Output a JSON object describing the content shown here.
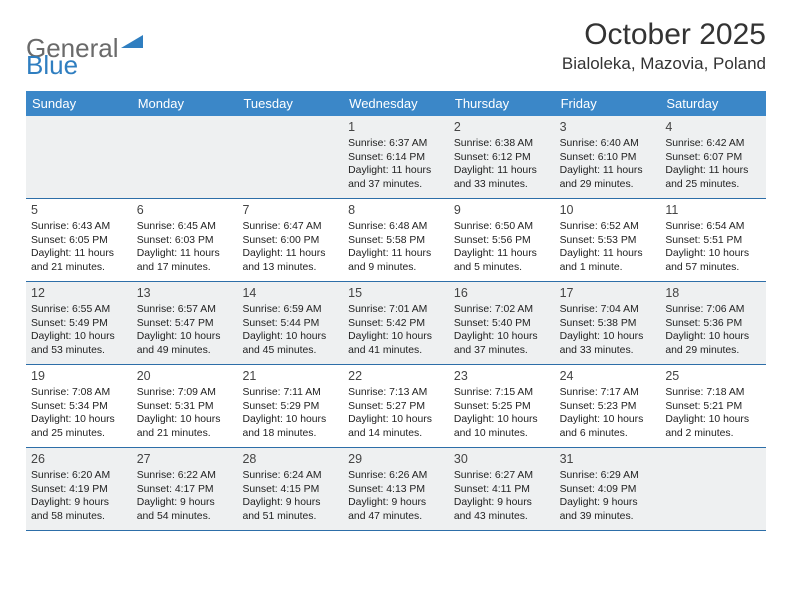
{
  "logo": {
    "text1": "General",
    "text2": "Blue"
  },
  "title": "October 2025",
  "location": "Bialoleka, Mazovia, Poland",
  "colors": {
    "header_bg": "#3b87c8",
    "header_text": "#ffffff",
    "rule": "#2d6ea8",
    "alt_row_bg": "#eef0f1",
    "logo_gray": "#6a6a6a",
    "logo_blue": "#2f7ec0"
  },
  "day_names": [
    "Sunday",
    "Monday",
    "Tuesday",
    "Wednesday",
    "Thursday",
    "Friday",
    "Saturday"
  ],
  "weeks": [
    [
      {
        "n": "",
        "sr": "",
        "ss": "",
        "dl": ""
      },
      {
        "n": "",
        "sr": "",
        "ss": "",
        "dl": ""
      },
      {
        "n": "",
        "sr": "",
        "ss": "",
        "dl": ""
      },
      {
        "n": "1",
        "sr": "Sunrise: 6:37 AM",
        "ss": "Sunset: 6:14 PM",
        "dl": "Daylight: 11 hours and 37 minutes."
      },
      {
        "n": "2",
        "sr": "Sunrise: 6:38 AM",
        "ss": "Sunset: 6:12 PM",
        "dl": "Daylight: 11 hours and 33 minutes."
      },
      {
        "n": "3",
        "sr": "Sunrise: 6:40 AM",
        "ss": "Sunset: 6:10 PM",
        "dl": "Daylight: 11 hours and 29 minutes."
      },
      {
        "n": "4",
        "sr": "Sunrise: 6:42 AM",
        "ss": "Sunset: 6:07 PM",
        "dl": "Daylight: 11 hours and 25 minutes."
      }
    ],
    [
      {
        "n": "5",
        "sr": "Sunrise: 6:43 AM",
        "ss": "Sunset: 6:05 PM",
        "dl": "Daylight: 11 hours and 21 minutes."
      },
      {
        "n": "6",
        "sr": "Sunrise: 6:45 AM",
        "ss": "Sunset: 6:03 PM",
        "dl": "Daylight: 11 hours and 17 minutes."
      },
      {
        "n": "7",
        "sr": "Sunrise: 6:47 AM",
        "ss": "Sunset: 6:00 PM",
        "dl": "Daylight: 11 hours and 13 minutes."
      },
      {
        "n": "8",
        "sr": "Sunrise: 6:48 AM",
        "ss": "Sunset: 5:58 PM",
        "dl": "Daylight: 11 hours and 9 minutes."
      },
      {
        "n": "9",
        "sr": "Sunrise: 6:50 AM",
        "ss": "Sunset: 5:56 PM",
        "dl": "Daylight: 11 hours and 5 minutes."
      },
      {
        "n": "10",
        "sr": "Sunrise: 6:52 AM",
        "ss": "Sunset: 5:53 PM",
        "dl": "Daylight: 11 hours and 1 minute."
      },
      {
        "n": "11",
        "sr": "Sunrise: 6:54 AM",
        "ss": "Sunset: 5:51 PM",
        "dl": "Daylight: 10 hours and 57 minutes."
      }
    ],
    [
      {
        "n": "12",
        "sr": "Sunrise: 6:55 AM",
        "ss": "Sunset: 5:49 PM",
        "dl": "Daylight: 10 hours and 53 minutes."
      },
      {
        "n": "13",
        "sr": "Sunrise: 6:57 AM",
        "ss": "Sunset: 5:47 PM",
        "dl": "Daylight: 10 hours and 49 minutes."
      },
      {
        "n": "14",
        "sr": "Sunrise: 6:59 AM",
        "ss": "Sunset: 5:44 PM",
        "dl": "Daylight: 10 hours and 45 minutes."
      },
      {
        "n": "15",
        "sr": "Sunrise: 7:01 AM",
        "ss": "Sunset: 5:42 PM",
        "dl": "Daylight: 10 hours and 41 minutes."
      },
      {
        "n": "16",
        "sr": "Sunrise: 7:02 AM",
        "ss": "Sunset: 5:40 PM",
        "dl": "Daylight: 10 hours and 37 minutes."
      },
      {
        "n": "17",
        "sr": "Sunrise: 7:04 AM",
        "ss": "Sunset: 5:38 PM",
        "dl": "Daylight: 10 hours and 33 minutes."
      },
      {
        "n": "18",
        "sr": "Sunrise: 7:06 AM",
        "ss": "Sunset: 5:36 PM",
        "dl": "Daylight: 10 hours and 29 minutes."
      }
    ],
    [
      {
        "n": "19",
        "sr": "Sunrise: 7:08 AM",
        "ss": "Sunset: 5:34 PM",
        "dl": "Daylight: 10 hours and 25 minutes."
      },
      {
        "n": "20",
        "sr": "Sunrise: 7:09 AM",
        "ss": "Sunset: 5:31 PM",
        "dl": "Daylight: 10 hours and 21 minutes."
      },
      {
        "n": "21",
        "sr": "Sunrise: 7:11 AM",
        "ss": "Sunset: 5:29 PM",
        "dl": "Daylight: 10 hours and 18 minutes."
      },
      {
        "n": "22",
        "sr": "Sunrise: 7:13 AM",
        "ss": "Sunset: 5:27 PM",
        "dl": "Daylight: 10 hours and 14 minutes."
      },
      {
        "n": "23",
        "sr": "Sunrise: 7:15 AM",
        "ss": "Sunset: 5:25 PM",
        "dl": "Daylight: 10 hours and 10 minutes."
      },
      {
        "n": "24",
        "sr": "Sunrise: 7:17 AM",
        "ss": "Sunset: 5:23 PM",
        "dl": "Daylight: 10 hours and 6 minutes."
      },
      {
        "n": "25",
        "sr": "Sunrise: 7:18 AM",
        "ss": "Sunset: 5:21 PM",
        "dl": "Daylight: 10 hours and 2 minutes."
      }
    ],
    [
      {
        "n": "26",
        "sr": "Sunrise: 6:20 AM",
        "ss": "Sunset: 4:19 PM",
        "dl": "Daylight: 9 hours and 58 minutes."
      },
      {
        "n": "27",
        "sr": "Sunrise: 6:22 AM",
        "ss": "Sunset: 4:17 PM",
        "dl": "Daylight: 9 hours and 54 minutes."
      },
      {
        "n": "28",
        "sr": "Sunrise: 6:24 AM",
        "ss": "Sunset: 4:15 PM",
        "dl": "Daylight: 9 hours and 51 minutes."
      },
      {
        "n": "29",
        "sr": "Sunrise: 6:26 AM",
        "ss": "Sunset: 4:13 PM",
        "dl": "Daylight: 9 hours and 47 minutes."
      },
      {
        "n": "30",
        "sr": "Sunrise: 6:27 AM",
        "ss": "Sunset: 4:11 PM",
        "dl": "Daylight: 9 hours and 43 minutes."
      },
      {
        "n": "31",
        "sr": "Sunrise: 6:29 AM",
        "ss": "Sunset: 4:09 PM",
        "dl": "Daylight: 9 hours and 39 minutes."
      },
      {
        "n": "",
        "sr": "",
        "ss": "",
        "dl": ""
      }
    ]
  ]
}
